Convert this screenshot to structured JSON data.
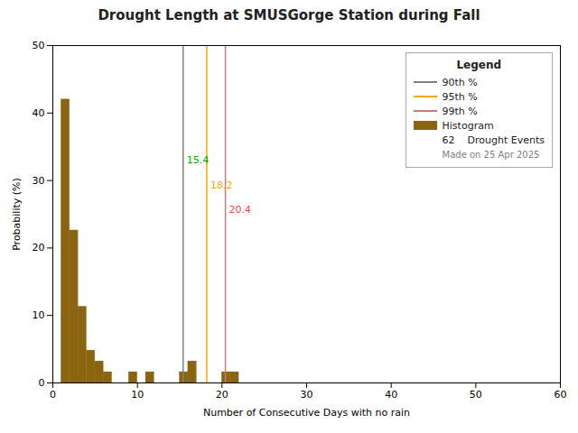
{
  "chart_data": {
    "type": "histogram",
    "title": "Drought Length at SMUSGorge Station during Fall",
    "xlabel": "Number of Consecutive Days with no rain",
    "ylabel": "Probability (%)",
    "name": "Histogram",
    "color": "#8B6410",
    "bins": [
      1,
      2,
      3,
      4,
      5,
      6,
      7,
      8,
      9,
      10,
      11,
      12,
      13,
      14,
      15,
      16,
      17,
      18,
      19,
      20,
      21,
      22,
      23,
      24,
      25,
      26,
      27,
      28,
      29,
      30,
      31
    ],
    "values": [
      42.0,
      22.6,
      11.3,
      4.8,
      3.2,
      1.6,
      0.0,
      0.0,
      1.6,
      0.0,
      1.6,
      0.0,
      0.0,
      0.0,
      1.6,
      3.2,
      0.0,
      0.0,
      0.0,
      1.6,
      1.6,
      0.0,
      0.0,
      0.0,
      0.0,
      0.0,
      0.0,
      0.0,
      0.0,
      0.0
    ],
    "lines": [
      {
        "name": "90th %",
        "x": 15.4,
        "color": "#808080"
      },
      {
        "name": "95th %",
        "x": 18.2,
        "color": "#FFA500"
      },
      {
        "name": "99th %",
        "x": 20.4,
        "color": "#C08080"
      }
    ],
    "annotations": [
      {
        "text": "15.4",
        "x": 15.4,
        "y": 32.5,
        "color": "#00AA00"
      },
      {
        "text": "18.2",
        "x": 18.2,
        "y": 28.8,
        "color": "#FFA500"
      },
      {
        "text": "20.4",
        "x": 20.4,
        "y": 25.2,
        "color": "#FF4444"
      }
    ],
    "legend": "upper right",
    "legend_title": "Legend",
    "legend_notes": [
      "62    Drought Events",
      "Made on 25 Apr 2025"
    ],
    "xlim": [
      0,
      60
    ],
    "ylim": [
      0,
      50
    ],
    "xticks": [
      0,
      10,
      20,
      30,
      40,
      50,
      60
    ],
    "yticks": [
      0,
      10,
      20,
      30,
      40,
      50
    ],
    "grid": false
  }
}
